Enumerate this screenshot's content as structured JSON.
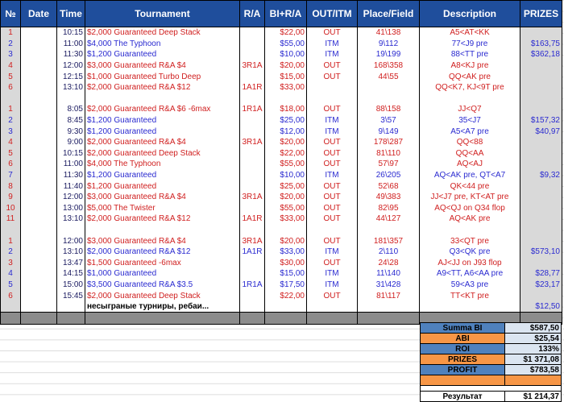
{
  "table": {
    "headers": [
      "№",
      "Date",
      "Time",
      "Tournament",
      "R/A",
      "BI+R/A",
      "OUT/ITM",
      "Place/Field",
      "Description",
      "PRIZES"
    ],
    "groups": [
      {
        "rows": [
          {
            "no": "1",
            "time": "10:15",
            "tournament": "$2,000 Guaranteed Deep Stack",
            "bi": "$22,00",
            "status": "OUT",
            "place": "41\\138",
            "desc": "A5<AT<KK"
          },
          {
            "no": "2",
            "time": "11:00",
            "tournament": "$4,000 The Typhoon",
            "bi": "$55,00",
            "status": "ITM",
            "place": "9\\112",
            "desc": "77<J9 pre",
            "prize": "$163,75"
          },
          {
            "no": "3",
            "time": "11:30",
            "tournament": "$1,200 Guaranteed",
            "bi": "$10,00",
            "status": "ITM",
            "place": "19\\199",
            "desc": "88<TT pre",
            "prize": "$362,18"
          },
          {
            "no": "4",
            "time": "12:00",
            "tournament": "$3,000 Guaranteed R&A $4",
            "ra": "3R1A",
            "bi": "$20,00",
            "status": "OUT",
            "place": "168\\358",
            "desc": "A8<KJ pre"
          },
          {
            "no": "5",
            "time": "12:15",
            "tournament": "$1,000 Guaranteed Turbo Deep",
            "bi": "$15,00",
            "status": "OUT",
            "place": "44\\55",
            "desc": "QQ<AK pre"
          },
          {
            "no": "6",
            "time": "13:10",
            "tournament": "$2,000 Guaranteed R&A $12",
            "ra": "1A1R",
            "bi": "$33,00",
            "desc": "QQ<K7, KJ<9T pre"
          }
        ]
      },
      {
        "rows": [
          {
            "no": "1",
            "time": "8:05",
            "tournament": "$2,000 Guaranteed R&A $6 -6max",
            "ra": "1R1A",
            "bi": "$18,00",
            "status": "OUT",
            "place": "88\\158",
            "desc": "JJ<Q7"
          },
          {
            "no": "2",
            "time": "8:45",
            "tournament": "$1,200 Guaranteed",
            "bi": "$25,00",
            "status": "ITM",
            "place": "3\\57",
            "desc": "35<J7",
            "prize": "$157,32"
          },
          {
            "no": "3",
            "time": "9:30",
            "tournament": "$1,200 Guaranteed",
            "bi": "$12,00",
            "status": "ITM",
            "place": "9\\149",
            "desc": "A5<A7 pre",
            "prize": "$40,97"
          },
          {
            "no": "4",
            "time": "9:00",
            "tournament": "$2,000 Guaranteed R&A $4",
            "ra": "3R1A",
            "bi": "$20,00",
            "status": "OUT",
            "place": "178\\287",
            "desc": "QQ<88"
          },
          {
            "no": "5",
            "time": "10:15",
            "tournament": "$2,000 Guaranteed Deep Stack",
            "bi": "$22,00",
            "status": "OUT",
            "place": "81\\110",
            "desc": "QQ<AA"
          },
          {
            "no": "6",
            "time": "11:00",
            "tournament": "$4,000 The Typhoon",
            "bi": "$55,00",
            "status": "OUT",
            "place": "57\\97",
            "desc": "AQ<AJ"
          },
          {
            "no": "7",
            "time": "11:30",
            "tournament": "$1,200 Guaranteed",
            "bi": "$10,00",
            "status": "ITM",
            "place": "26\\205",
            "desc": "AQ<AK pre, QT<A7",
            "prize": "$9,32"
          },
          {
            "no": "8",
            "time": "11:40",
            "tournament": "$1,200 Guaranteed",
            "bi": "$25,00",
            "status": "OUT",
            "place": "52\\68",
            "desc": "QK<44 pre"
          },
          {
            "no": "9",
            "time": "12:00",
            "tournament": "$3,000 Guaranteed R&A $4",
            "ra": "3R1A",
            "bi": "$20,00",
            "status": "OUT",
            "place": "49\\383",
            "desc": "JJ<J7 pre, KT<AT pre"
          },
          {
            "no": "10",
            "time": "13:00",
            "tournament": "$5,000 The Twister",
            "bi": "$55,00",
            "status": "OUT",
            "place": "82\\95",
            "desc": "AQ<QJ on Q34 flop"
          },
          {
            "no": "11",
            "time": "13:10",
            "tournament": "$2,000 Guaranteed R&A $12",
            "ra": "1A1R",
            "bi": "$33,00",
            "status": "OUT",
            "place": "44\\127",
            "desc": "AQ<AK pre"
          }
        ]
      },
      {
        "rows": [
          {
            "no": "1",
            "time": "12:00",
            "tournament": "$3,000 Guaranteed R&A $4",
            "ra": "3R1A",
            "bi": "$20,00",
            "status": "OUT",
            "place": "181\\357",
            "desc": "33<QT pre"
          },
          {
            "no": "2",
            "time": "13:10",
            "tournament": "$2,000 Guaranteed R&A $12",
            "ra": "1A1R",
            "bi": "$33,00",
            "status": "ITM",
            "place": "2\\110",
            "desc": "Q3<QK pre",
            "prize": "$573,10"
          },
          {
            "no": "3",
            "time": "13:47",
            "tournament": "$1,500 Guaranteed -6max",
            "bi": "$30,00",
            "status": "OUT",
            "place": "24\\28",
            "desc": "AJ<JJ on J93 flop"
          },
          {
            "no": "4",
            "time": "14:15",
            "tournament": "$1,000 Guaranteed",
            "bi": "$15,00",
            "status": "ITM",
            "place": "11\\140",
            "desc": "A9<TT, A6<AA pre",
            "prize": "$28,77"
          },
          {
            "no": "5",
            "time": "15:00",
            "tournament": "$3,500 Guaranteed R&A $3.5",
            "ra": "1R1A",
            "bi": "$17,50",
            "status": "ITM",
            "place": "31\\428",
            "desc": "59<A3 pre",
            "prize": "$23,17"
          },
          {
            "no": "6",
            "time": "15:45",
            "tournament": "$2,000 Guaranteed Deep Stack",
            "bi": "$22,00",
            "status": "OUT",
            "place": "81\\117",
            "desc": "TT<KT pre"
          }
        ]
      }
    ],
    "note": {
      "tournament": "несыграные турниры, ребаи...",
      "prize": "$12,50"
    },
    "summary": [
      {
        "label": "Summa BI",
        "value": "$587,50"
      },
      {
        "label": "ABI",
        "value": "$25,54"
      },
      {
        "label": "ROI",
        "value": "133%"
      },
      {
        "label": "PRIZES",
        "value": "$1 371,08"
      },
      {
        "label": "PROFIT",
        "value": "$783,58"
      },
      {
        "label": "Результат",
        "value": "$1 214,37"
      }
    ]
  }
}
